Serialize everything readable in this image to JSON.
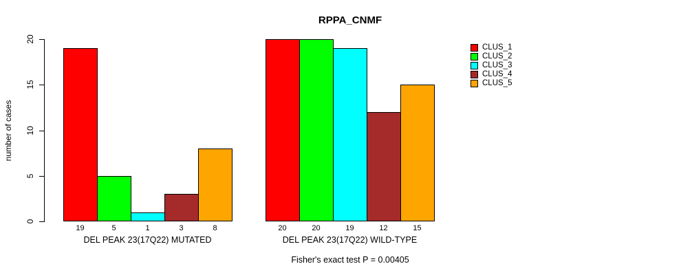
{
  "chart_data": {
    "type": "bar",
    "title": "RPPA_CNMF",
    "ylabel": "number of cases",
    "ylim": [
      0,
      20
    ],
    "yticks": [
      0,
      5,
      10,
      15,
      20
    ],
    "grid": false,
    "legend_position": "right-outside",
    "series": [
      "CLUS_1",
      "CLUS_2",
      "CLUS_3",
      "CLUS_4",
      "CLUS_5"
    ],
    "series_colors": [
      "#FF0000",
      "#00FF00",
      "#00FFFF",
      "#A52A2A",
      "#FFA500"
    ],
    "groups": [
      {
        "label": "DEL PEAK 23(17Q22) MUTATED",
        "values": [
          19,
          5,
          1,
          3,
          8
        ]
      },
      {
        "label": "DEL PEAK 23(17Q22) WILD-TYPE",
        "values": [
          20,
          20,
          19,
          12,
          15
        ]
      }
    ],
    "bar_value_labels_shown": true,
    "annotation": "Fisher's exact test P = 0.00405"
  }
}
